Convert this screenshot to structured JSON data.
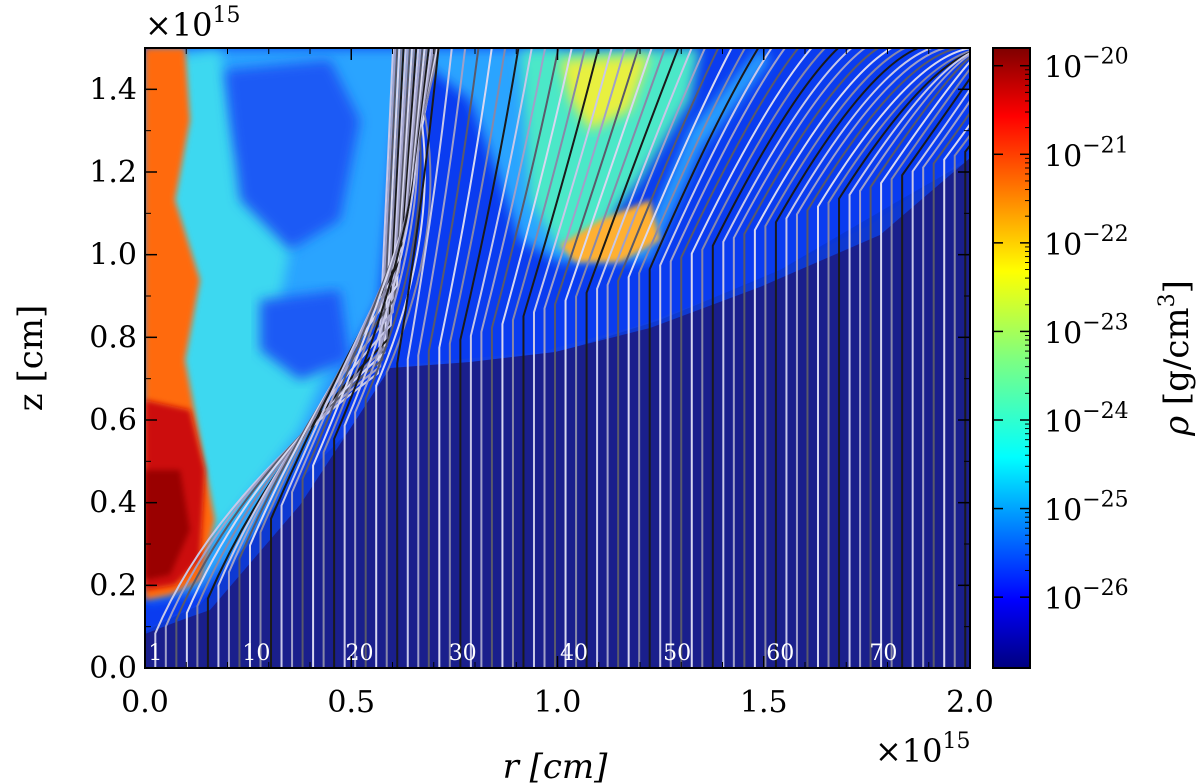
{
  "chart_data": {
    "type": "heatmap",
    "title": "",
    "xlabel": "r [cm]",
    "ylabel": "z [cm]",
    "x_multiplier": "×10^15",
    "y_multiplier": "×10^15",
    "xlim": [
      0.0,
      2.0
    ],
    "ylim": [
      0.0,
      1.5
    ],
    "xticks": [
      "0.0",
      "0.5",
      "1.0",
      "1.5",
      "2.0"
    ],
    "yticks": [
      "0.0",
      "0.2",
      "0.4",
      "0.6",
      "0.8",
      "1.0",
      "1.2",
      "1.4"
    ],
    "colorbar": {
      "label": "ρ [g/cm³]",
      "scale": "log",
      "range": [
        -26.8,
        -19.8
      ],
      "ticks": [
        {
          "exp": -20,
          "label": "10^-20"
        },
        {
          "exp": -21,
          "label": "10^-21"
        },
        {
          "exp": -22,
          "label": "10^-22"
        },
        {
          "exp": -23,
          "label": "10^-23"
        },
        {
          "exp": -24,
          "label": "10^-24"
        },
        {
          "exp": -25,
          "label": "10^-25"
        },
        {
          "exp": -26,
          "label": "10^-26"
        }
      ],
      "colormap": "jet"
    },
    "field_line_labels": [
      {
        "label": "1",
        "r": 0.025
      },
      {
        "label": "10",
        "r": 0.27
      },
      {
        "label": "20",
        "r": 0.52
      },
      {
        "label": "30",
        "r": 0.77
      },
      {
        "label": "40",
        "r": 1.04
      },
      {
        "label": "50",
        "r": 1.29
      },
      {
        "label": "60",
        "r": 1.54
      },
      {
        "label": "70",
        "r": 1.79
      }
    ],
    "field_line_count": 78,
    "grid": false
  }
}
